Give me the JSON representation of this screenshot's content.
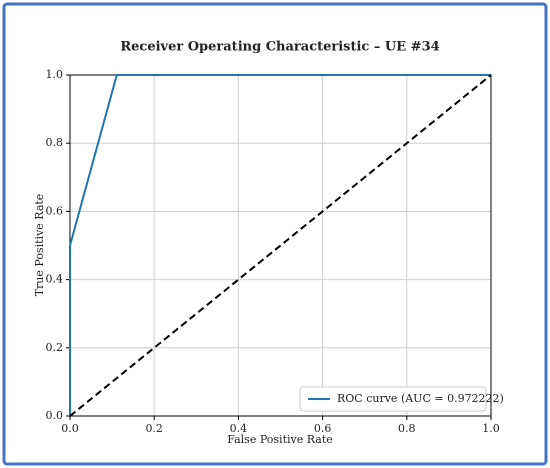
{
  "chart_data": {
    "type": "line",
    "title": "Receiver Operating Characteristic – UE #34",
    "x_label": "False Positive Rate",
    "y_label": "True Positive Rate",
    "series": [
      {
        "name": "ROC curve (AUC = 0.972222)",
        "color": "#1f77b4",
        "x": [
          0,
          0,
          0.1111,
          1
        ],
        "values": [
          0,
          0.5,
          1,
          1
        ]
      },
      {
        "color": "#000000",
        "dashed": true,
        "x": [
          0,
          1
        ],
        "values": [
          0,
          1
        ]
      }
    ],
    "xlim": [
      0,
      1
    ],
    "ylim": [
      0,
      1
    ],
    "xticks": [
      {
        "value": 0,
        "label": "0.0"
      },
      0.2,
      0.4,
      0.6,
      0.8,
      {
        "value": 1,
        "label": "1.0"
      }
    ],
    "yticks": [
      {
        "value": 0,
        "label": "0.0"
      },
      0.2,
      0.4,
      0.6,
      0.8,
      {
        "value": 1,
        "label": "1.0"
      }
    ],
    "grid": true,
    "legend": "lower right"
  }
}
